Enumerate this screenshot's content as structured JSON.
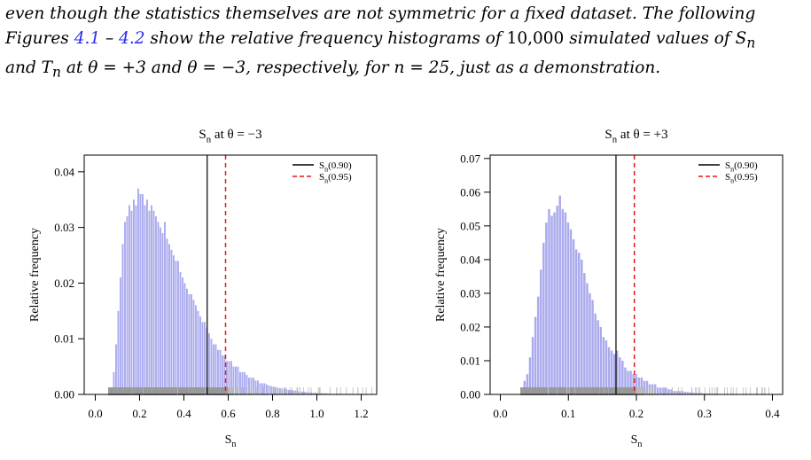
{
  "paragraph": {
    "line1": "even though the statistics themselves are not symmetric for a fixed dataset. The following",
    "line2_a": "Figures ",
    "ref1": "4.1",
    "line2_b": " – ",
    "ref2": "4.2",
    "line2_c": " show the relative frequency histograms of ",
    "count": "10,000",
    "line2_d": " simulated values of ",
    "var1": "S",
    "var1_sub": "n",
    "line3_a": "and ",
    "var2": "T",
    "var2_sub": "n",
    "line3_b": " at ",
    "theta1": "θ = +3",
    "line3_c": " and ",
    "theta2": "θ = −3",
    "line3_d": ", respectively, for ",
    "nval": "n = 25",
    "line3_e": ", just as a demonstration."
  },
  "colors": {
    "bars": "#aaaaee",
    "bar_outline": "#8c8ce6",
    "rug": "#999999",
    "q90": "#000000",
    "q95": "#e41a1c"
  },
  "chart_data": [
    {
      "type": "bar",
      "title": "S_n at θ = −3",
      "title_main": "S",
      "title_sub": "n",
      "title_rest": " at θ = −3",
      "xlabel": "S",
      "xlabel_sub": "n",
      "ylabel": "Relative frequency",
      "xlim": [
        -0.05,
        1.27
      ],
      "ylim": [
        0,
        0.043
      ],
      "xticks": [
        0.0,
        0.2,
        0.4,
        0.6,
        0.8,
        1.0,
        1.2
      ],
      "xtick_labels": [
        "0.0",
        "0.2",
        "0.4",
        "0.6",
        "0.8",
        "1.0",
        "1.2"
      ],
      "yticks": [
        0.0,
        0.01,
        0.02,
        0.03,
        0.04
      ],
      "ytick_labels": [
        "0.00",
        "0.01",
        "0.02",
        "0.03",
        "0.04"
      ],
      "bin_width": 0.01,
      "bin_start": 0.07,
      "values": [
        0.001,
        0.004,
        0.009,
        0.015,
        0.021,
        0.027,
        0.031,
        0.032,
        0.034,
        0.033,
        0.035,
        0.034,
        0.037,
        0.036,
        0.036,
        0.034,
        0.035,
        0.033,
        0.034,
        0.033,
        0.032,
        0.031,
        0.03,
        0.029,
        0.031,
        0.028,
        0.027,
        0.026,
        0.025,
        0.024,
        0.024,
        0.022,
        0.021,
        0.02,
        0.019,
        0.018,
        0.018,
        0.017,
        0.016,
        0.015,
        0.014,
        0.013,
        0.013,
        0.012,
        0.011,
        0.01,
        0.009,
        0.009,
        0.008,
        0.008,
        0.007,
        0.007,
        0.006,
        0.006,
        0.006,
        0.005,
        0.005,
        0.005,
        0.004,
        0.004,
        0.004,
        0.0035,
        0.003,
        0.003,
        0.003,
        0.0025,
        0.0025,
        0.002,
        0.002,
        0.002,
        0.0018,
        0.0016,
        0.0015,
        0.0014,
        0.0013,
        0.0012,
        0.0011,
        0.001,
        0.001,
        0.0009,
        0.0008,
        0.0008,
        0.0007,
        0.0007,
        0.0006,
        0.0005,
        0.0005,
        0.0005,
        0.0004,
        0.0004,
        0.0004,
        0.0003,
        0.0003,
        0.0003,
        0.0002,
        0.0002,
        0.0002,
        0.0002,
        0.0001,
        0.0001,
        0.0001,
        0.0001,
        0.0001,
        0.0001,
        0.0001,
        0.0001,
        0.0001,
        0.0001,
        0.0001
      ],
      "rug_min": 0.06,
      "rug_dense_max": 0.6,
      "rug_max": 1.25,
      "vline_q90": 0.505,
      "vline_q95": 0.588,
      "legend": {
        "position": "top-right",
        "entries": [
          {
            "label_main": "S",
            "label_sub": "n",
            "label_rest": "(0.90)",
            "style": "solid"
          },
          {
            "label_main": "S",
            "label_sub": "n",
            "label_rest": "(0.95)",
            "style": "dashed"
          }
        ]
      }
    },
    {
      "type": "bar",
      "title": "S_n at θ = +3",
      "title_main": "S",
      "title_sub": "n",
      "title_rest": " at θ = +3",
      "xlabel": "S",
      "xlabel_sub": "n",
      "ylabel": "Relative frequency",
      "xlim": [
        -0.015,
        0.415
      ],
      "ylim": [
        0,
        0.071
      ],
      "xticks": [
        0.0,
        0.1,
        0.2,
        0.3,
        0.4
      ],
      "xtick_labels": [
        "0.0",
        "0.1",
        "0.2",
        "0.3",
        "0.4"
      ],
      "yticks": [
        0.0,
        0.01,
        0.02,
        0.03,
        0.04,
        0.05,
        0.06,
        0.07
      ],
      "ytick_labels": [
        "0.00",
        "0.01",
        "0.02",
        "0.03",
        "0.04",
        "0.05",
        "0.06",
        "0.07"
      ],
      "bin_width": 0.004,
      "bin_start": 0.03,
      "values": [
        0.001,
        0.004,
        0.006,
        0.011,
        0.017,
        0.023,
        0.029,
        0.037,
        0.045,
        0.051,
        0.055,
        0.053,
        0.054,
        0.056,
        0.059,
        0.055,
        0.054,
        0.051,
        0.049,
        0.046,
        0.043,
        0.042,
        0.04,
        0.036,
        0.033,
        0.03,
        0.028,
        0.024,
        0.022,
        0.02,
        0.017,
        0.016,
        0.014,
        0.013,
        0.012,
        0.013,
        0.011,
        0.01,
        0.008,
        0.007,
        0.007,
        0.006,
        0.006,
        0.005,
        0.005,
        0.004,
        0.004,
        0.003,
        0.003,
        0.003,
        0.002,
        0.002,
        0.002,
        0.002,
        0.0015,
        0.0015,
        0.001,
        0.001,
        0.001,
        0.001,
        0.0008,
        0.0007,
        0.0006,
        0.0005,
        0.0005,
        0.0004,
        0.0004,
        0.0003,
        0.0003,
        0.0002,
        0.0002,
        0.0002,
        0.0001,
        0.0001,
        0.0001,
        0.0001,
        0.0001
      ],
      "rug_min": 0.03,
      "rug_dense_max": 0.2,
      "rug_max": 0.4,
      "vline_q90": 0.17,
      "vline_q95": 0.197,
      "legend": {
        "position": "top-right",
        "entries": [
          {
            "label_main": "S",
            "label_sub": "n",
            "label_rest": "(0.90)",
            "style": "solid"
          },
          {
            "label_main": "S",
            "label_sub": "n",
            "label_rest": "(0.95)",
            "style": "dashed"
          }
        ]
      }
    }
  ]
}
